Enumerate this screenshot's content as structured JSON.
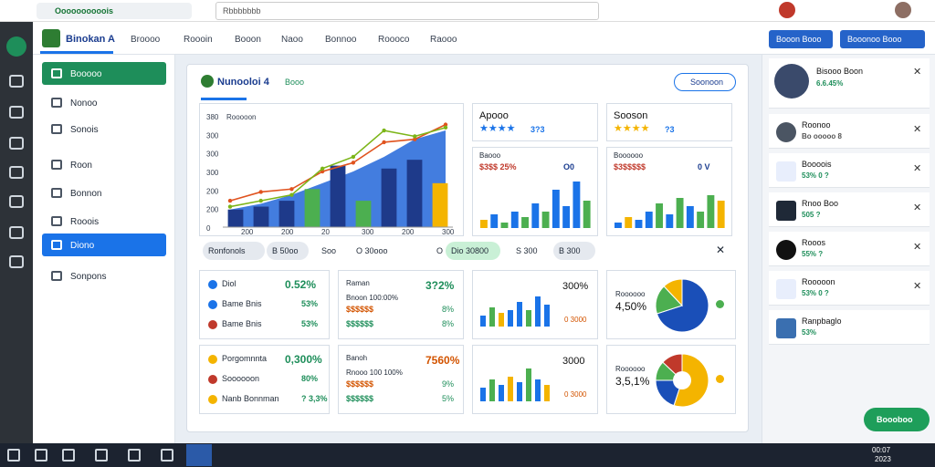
{
  "browser": {
    "tab": "Oooooooooois",
    "search": "Rbbbbbbb"
  },
  "nav": {
    "brand": "Binokan A",
    "tabs": [
      "Broooo",
      "Roooin",
      "Booon",
      "Naoo",
      "Bonnoo",
      "Roooco",
      "Raooo"
    ],
    "buttons": [
      "Booon Booo",
      "Booonoo Booo"
    ]
  },
  "sidebar": {
    "items": [
      "Booooo",
      "Nonoo",
      "Sonois",
      "Roon",
      "Bonnon",
      "Rooois",
      "Diono",
      "Sonpons"
    ]
  },
  "dashboard": {
    "title": "Nunooloi 4",
    "subtitle": "Booo",
    "button": "Soonoon",
    "main_chart": {
      "title": "Rooooon",
      "ytick_labels": [
        "380",
        "300",
        "300",
        "300",
        "200",
        "200",
        "0"
      ],
      "xtick_labels": [
        "200",
        "200",
        "20",
        "300",
        "200",
        "300"
      ],
      "ylim": [
        0,
        380
      ],
      "area": [
        60,
        80,
        110,
        150,
        190,
        240,
        300,
        330
      ],
      "bars": [
        {
          "color": "#1e3a8a",
          "value": 60
        },
        {
          "color": "#1e3a8a",
          "value": 70
        },
        {
          "color": "#1e3a8a",
          "value": 90
        },
        {
          "color": "#4caf50",
          "value": 130
        },
        {
          "color": "#1e3a8a",
          "value": 210
        },
        {
          "color": "#4caf50",
          "value": 90
        },
        {
          "color": "#1e3a8a",
          "value": 200
        },
        {
          "color": "#1e3a8a",
          "value": 230
        },
        {
          "color": "#f4b400",
          "value": 150
        }
      ],
      "lines": [
        {
          "color": "#e0531f",
          "values": [
            90,
            120,
            130,
            190,
            220,
            290,
            300,
            350
          ]
        },
        {
          "color": "#7cb518",
          "values": [
            70,
            90,
            110,
            200,
            240,
            330,
            310,
            340
          ]
        }
      ]
    },
    "top_cards": [
      {
        "title": "Apooo",
        "rating": "3?3"
      },
      {
        "title": "Sooson",
        "rating": "?3"
      }
    ],
    "mid_cards": [
      {
        "title": "Baooo",
        "line": "$3$$ 25%",
        "tag": "O0",
        "values": [
          15,
          25,
          10,
          30,
          20,
          45,
          30,
          70,
          40,
          85,
          50
        ],
        "colors": [
          "#f4b400",
          "#1a73e8",
          "#4caf50",
          "#1a73e8",
          "#4caf50",
          "#1a73e8",
          "#4caf50",
          "#1a73e8",
          "#1a73e8",
          "#1a73e8",
          "#4caf50"
        ]
      },
      {
        "title": "Boooooo",
        "line": "$3$$$$$",
        "tag": "0 V",
        "values": [
          10,
          20,
          15,
          30,
          45,
          25,
          55,
          40,
          30,
          60,
          50
        ],
        "colors": [
          "#1a73e8",
          "#f4b400",
          "#1a73e8",
          "#1a73e8",
          "#4caf50",
          "#1a73e8",
          "#4caf50",
          "#1a73e8",
          "#4caf50",
          "#4caf50",
          "#f4b400"
        ]
      }
    ],
    "filters": [
      "Ronfonols",
      "B 50oo",
      "Soo",
      "O 30ooo",
      "O",
      "Dio 30800",
      "S 300",
      "B 300"
    ],
    "list_cards": [
      [
        {
          "label": "Diol",
          "value": "0.52%",
          "color": "#1a73e8"
        },
        {
          "label": "Bame Bnis",
          "value": "53%",
          "color": "#1a73e8"
        },
        {
          "label": "Bame Bnis",
          "value": "53%",
          "color": "#c0392b"
        }
      ],
      [
        {
          "label": "Porgomnnta",
          "value": "0,300%",
          "color": "#f4b400"
        },
        {
          "label": "Soooooon",
          "value": "80%",
          "color": "#c0392b"
        },
        {
          "label": "Nanb Bonnman",
          "value": "? 3,3%",
          "color": "#f4b400"
        }
      ]
    ],
    "text_cards": [
      {
        "title": "Raman",
        "value": "3?2%",
        "sub": "Bnoon 100:00%",
        "line": "$$$$$$",
        "pct": "8%",
        "line2": "$$$$$$",
        "pct2": "8%"
      },
      {
        "title": "Banoh",
        "value": "7560%",
        "sub": "Rnooo 100 100%",
        "line": "$$$$$$",
        "pct": "9%",
        "line2": "$$$$$$",
        "pct2": "5%"
      }
    ],
    "bar_cards": [
      {
        "value": "300%",
        "sub": "0 3000",
        "values": [
          20,
          35,
          25,
          30,
          45,
          30,
          55,
          40
        ],
        "colors": [
          "#1a73e8",
          "#4caf50",
          "#f4b400",
          "#1a73e8",
          "#1a73e8",
          "#4caf50",
          "#1a73e8",
          "#1a73e8"
        ]
      },
      {
        "value": "3000",
        "sub": "0 3000",
        "values": [
          25,
          40,
          30,
          45,
          35,
          60,
          40,
          30
        ],
        "colors": [
          "#1a73e8",
          "#4caf50",
          "#1a73e8",
          "#f4b400",
          "#1a73e8",
          "#4caf50",
          "#1a73e8",
          "#f4b400"
        ]
      }
    ],
    "pie_cards": [
      {
        "title": "Roooooo",
        "value": "4,50%",
        "slices": [
          70,
          18,
          12
        ],
        "colors": [
          "#1a4fb8",
          "#4caf50",
          "#f4b400"
        ]
      },
      {
        "title": "Roooooo",
        "value": "3,5,1%",
        "slices": [
          55,
          20,
          12,
          13
        ],
        "colors": [
          "#f4b400",
          "#1a4fb8",
          "#4caf50",
          "#c0392b"
        ]
      }
    ]
  },
  "notifications": [
    {
      "name": "Bisooo Boon",
      "sub": "6.6.45%"
    },
    {
      "name": "Roonoo",
      "sub": "Bo ooooo 8"
    },
    {
      "name": "Boooois",
      "sub": "53% 0 ?"
    },
    {
      "name": "Rnoo Boo",
      "sub": "505 ?"
    },
    {
      "name": "Rooos",
      "sub": "55% ?"
    },
    {
      "name": "Rooooon",
      "sub": "53% 0 ?"
    },
    {
      "name": "Ranpbaglo",
      "sub": "53%"
    }
  ],
  "fab": "Boooboo",
  "clock": {
    "time": "00:07",
    "date": "2023"
  }
}
